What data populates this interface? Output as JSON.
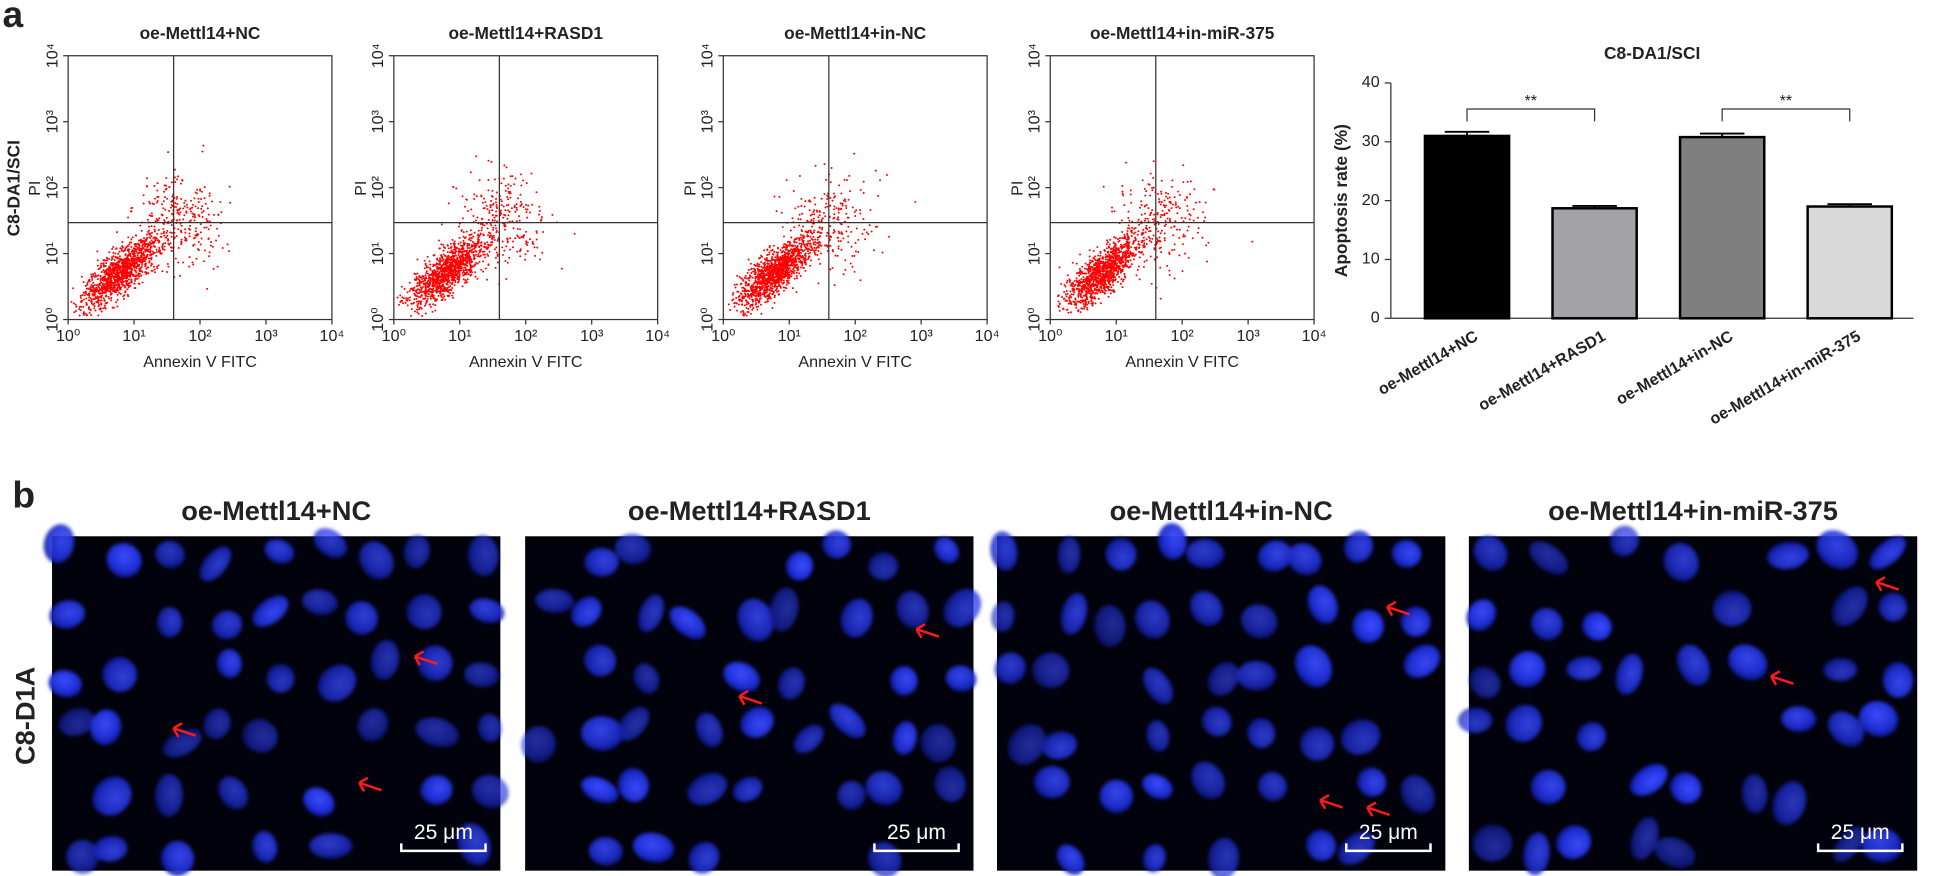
{
  "panel_labels": [
    "a",
    "b"
  ],
  "chart_data": [
    {
      "type": "flow-cytometry",
      "title": "oe-Mettl14+NC",
      "row_label": "C8-DA1/SCI",
      "x_label": "Annexin V FITC",
      "y_label": "PI",
      "log_scale": true,
      "color": "#ff0000",
      "xlim": [
        1,
        10000
      ],
      "ylim": [
        1,
        10000
      ],
      "xticks": [
        {
          "value": 1,
          "label": "10⁰"
        },
        {
          "value": 10,
          "label": "10¹"
        },
        {
          "value": 100,
          "label": "10²"
        },
        {
          "value": 1000,
          "label": "10³"
        },
        {
          "value": 10000,
          "label": "10⁴"
        }
      ],
      "yticks": [
        {
          "value": 1,
          "label": "10⁰"
        },
        {
          "value": 10,
          "label": "10¹"
        },
        {
          "value": 100,
          "label": "10²"
        },
        {
          "value": 1000,
          "label": "10³"
        },
        {
          "value": 10000,
          "label": "10⁴"
        }
      ]
    },
    {
      "type": "flow-cytometry",
      "title": "oe-Mettl14+RASD1",
      "x_label": "Annexin V FITC",
      "y_label": "PI",
      "log_scale": true,
      "color": "#ff0000",
      "xlim": [
        1,
        10000
      ],
      "ylim": [
        1,
        10000
      ],
      "xticks": [
        {
          "value": 1,
          "label": "10⁰"
        },
        {
          "value": 10,
          "label": "10¹"
        },
        {
          "value": 100,
          "label": "10²"
        },
        {
          "value": 1000,
          "label": "10³"
        },
        {
          "value": 10000,
          "label": "10⁴"
        }
      ],
      "yticks": [
        {
          "value": 1,
          "label": "10⁰"
        },
        {
          "value": 10,
          "label": "10¹"
        },
        {
          "value": 100,
          "label": "10²"
        },
        {
          "value": 1000,
          "label": "10³"
        },
        {
          "value": 10000,
          "label": "10⁴"
        }
      ]
    },
    {
      "type": "flow-cytometry",
      "title": "oe-Mettl14+in-NC",
      "x_label": "Annexin V FITC",
      "y_label": "PI",
      "log_scale": true,
      "color": "#ff0000",
      "xlim": [
        1,
        10000
      ],
      "ylim": [
        1,
        10000
      ],
      "xticks": [
        {
          "value": 1,
          "label": "10⁰"
        },
        {
          "value": 10,
          "label": "10¹"
        },
        {
          "value": 100,
          "label": "10²"
        },
        {
          "value": 1000,
          "label": "10³"
        },
        {
          "value": 10000,
          "label": "10⁴"
        }
      ],
      "yticks": [
        {
          "value": 1,
          "label": "10⁰"
        },
        {
          "value": 10,
          "label": "10¹"
        },
        {
          "value": 100,
          "label": "10²"
        },
        {
          "value": 1000,
          "label": "10³"
        },
        {
          "value": 10000,
          "label": "10⁴"
        }
      ]
    },
    {
      "type": "flow-cytometry",
      "title": "oe-Mettl14+in-miR-375",
      "x_label": "Annexin V FITC",
      "y_label": "PI",
      "log_scale": true,
      "color": "#ff0000",
      "xlim": [
        1,
        10000
      ],
      "ylim": [
        1,
        10000
      ],
      "xticks": [
        {
          "value": 1,
          "label": "10⁰"
        },
        {
          "value": 10,
          "label": "10¹"
        },
        {
          "value": 100,
          "label": "10²"
        },
        {
          "value": 1000,
          "label": "10³"
        },
        {
          "value": 10000,
          "label": "10⁴"
        }
      ],
      "yticks": [
        {
          "value": 1,
          "label": "10⁰"
        },
        {
          "value": 10,
          "label": "10¹"
        },
        {
          "value": 100,
          "label": "10²"
        },
        {
          "value": 1000,
          "label": "10³"
        },
        {
          "value": 10000,
          "label": "10⁴"
        }
      ]
    },
    {
      "type": "bar",
      "title": "C8-DA1/SCI",
      "y_label": "Apoptosis rate (%)",
      "categories": [
        "oe-Mettl14+NC",
        "oe-Mettl14+RASD1",
        "oe-Mettl14+in-NC",
        "oe-Mettl14+in-miR-375"
      ],
      "values": [
        31,
        18.7,
        30.8,
        19
      ],
      "errors": [
        0.7,
        0.4,
        0.6,
        0.4
      ],
      "colors": [
        "#000000",
        "#a3a3a7",
        "#7f7f7f",
        "#d9d9d9"
      ],
      "ylim": [
        0,
        40
      ],
      "yticks": [
        0,
        10,
        20,
        30,
        40
      ],
      "annotations": [
        {
          "from": 0,
          "to": 1,
          "text": "**"
        },
        {
          "from": 2,
          "to": 3,
          "text": "**"
        }
      ]
    }
  ],
  "panel_b": {
    "row_label": "C8-D1A",
    "images": [
      {
        "title": "oe-Mettl14+NC",
        "scale_bar": "25 μm"
      },
      {
        "title": "oe-Mettl14+RASD1",
        "scale_bar": "25 μm"
      },
      {
        "title": "oe-Mettl14+in-NC",
        "scale_bar": "25 μm"
      },
      {
        "title": "oe-Mettl14+in-miR-375",
        "scale_bar": "25 μm"
      }
    ]
  }
}
